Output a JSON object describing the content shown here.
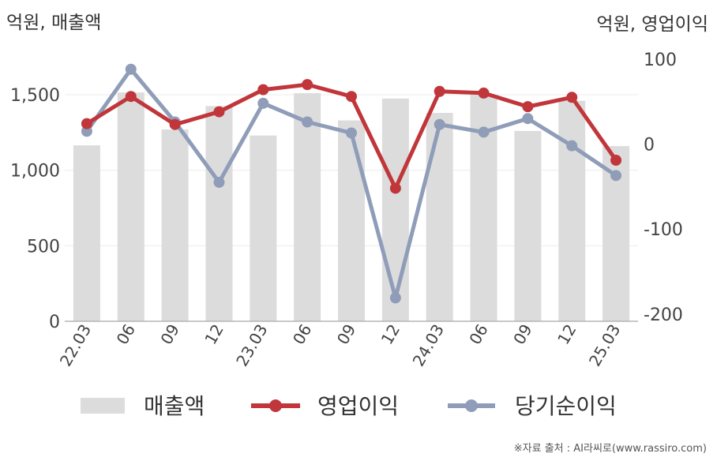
{
  "chart_data": {
    "type": "bar",
    "categories": [
      "22.03",
      "06",
      "09",
      "12",
      "23.03",
      "06",
      "09",
      "12",
      "24.03",
      "06",
      "09",
      "12",
      "25.03"
    ],
    "left_axis_label": "억원, 매출액",
    "right_axis_label": "억원, 영업이익",
    "left_ylim": [
      0,
      1750
    ],
    "left_ticks": [
      "0",
      "500",
      "1,000",
      "1,500"
    ],
    "left_tick_values": [
      0,
      500,
      1000,
      1500
    ],
    "right_ylim": [
      -210,
      100
    ],
    "right_ticks": [
      "100",
      "0",
      "-100",
      "-200"
    ],
    "right_tick_values": [
      100,
      0,
      -100,
      -200
    ],
    "bar_series": {
      "name": "매출액",
      "color": "#dcdcdc",
      "values": [
        1165,
        1515,
        1270,
        1425,
        1230,
        1510,
        1330,
        1475,
        1380,
        1500,
        1260,
        1460,
        1160
      ]
    },
    "line_series": [
      {
        "name": "영업이익",
        "color": "#c0363a",
        "values": [
          24,
          56,
          23,
          38,
          64,
          70,
          56,
          -52,
          62,
          60,
          44,
          55,
          -19
        ]
      },
      {
        "name": "당기순이익",
        "color": "#8f9db8",
        "values": [
          15,
          88,
          26,
          -45,
          48,
          26,
          13,
          -181,
          23,
          14,
          30,
          -2,
          -37
        ]
      }
    ],
    "grid": true,
    "legend_position": "bottom"
  },
  "footer": {
    "source": "※자료 출처 : AI라씨로(www.rassiro.com)"
  }
}
